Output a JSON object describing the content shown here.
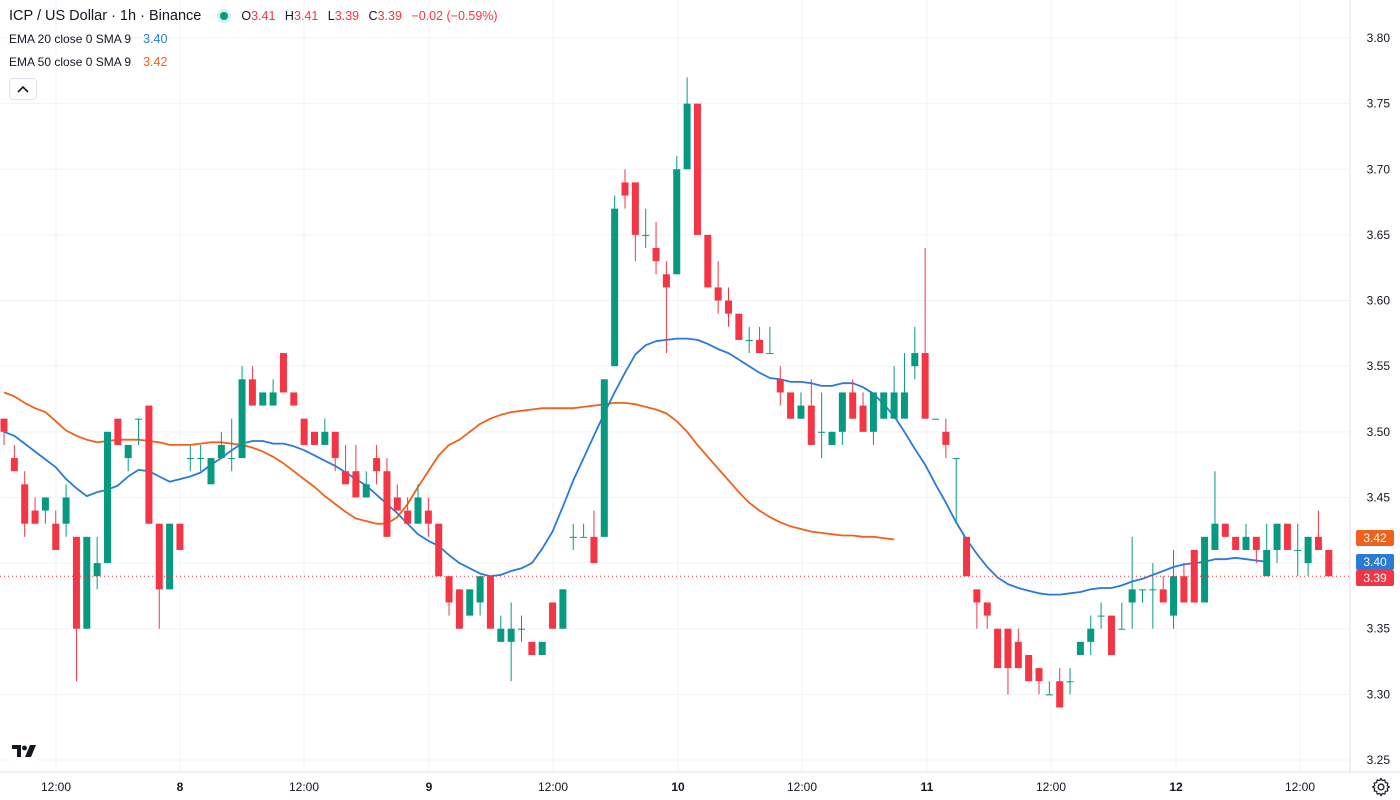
{
  "header": {
    "title": "ICP / US Dollar · 1h · Binance",
    "ohlc": {
      "o_label": "O",
      "o": "3.41",
      "h_label": "H",
      "h": "3.41",
      "l_label": "L",
      "l": "3.39",
      "c_label": "C",
      "c": "3.39",
      "change": "−0.02 (−0.59%)"
    }
  },
  "indicators": [
    {
      "label": "EMA 20 close 0 SMA 9",
      "value": "3.40",
      "color": "#2a7ad8"
    },
    {
      "label": "EMA 50 close 0 SMA 9",
      "value": "3.42",
      "color": "#f0621c"
    }
  ],
  "colors": {
    "up": "#089981",
    "down": "#f23645",
    "ema20": "#2a7ad8",
    "ema50": "#f0621c",
    "grid": "#f0f3fa",
    "axis_text": "#131722"
  },
  "icons": {
    "collapse": "chevron-up-icon",
    "logo": "tradingview-logo-icon",
    "settings": "gear-icon"
  },
  "chart_data": {
    "type": "candlestick",
    "symbol": "ICP / US Dollar",
    "interval": "1h",
    "exchange": "Binance",
    "ylim": [
      3.25,
      3.8
    ],
    "y_ticks": [
      "3.80",
      "3.75",
      "3.70",
      "3.65",
      "3.60",
      "3.55",
      "3.50",
      "3.45",
      "3.40",
      "3.35",
      "3.30",
      "3.25"
    ],
    "x_ticks": [
      "12:00",
      "8",
      "12:00",
      "9",
      "12:00",
      "10",
      "12:00",
      "11",
      "12:00",
      "12",
      "12:00"
    ],
    "price_labels": [
      {
        "value": "3.42",
        "color": "#f0621c"
      },
      {
        "value": "3.40",
        "color": "#2a7ad8"
      },
      {
        "value": "3.39",
        "color": "#f23645"
      }
    ],
    "current_price": 3.39,
    "candles": [
      [
        3.51,
        3.51,
        3.49,
        3.5
      ],
      [
        3.48,
        3.49,
        3.47,
        3.47
      ],
      [
        3.46,
        3.47,
        3.42,
        3.43
      ],
      [
        3.44,
        3.45,
        3.43,
        3.43
      ],
      [
        3.44,
        3.45,
        3.43,
        3.45
      ],
      [
        3.43,
        3.44,
        3.41,
        3.41
      ],
      [
        3.43,
        3.46,
        3.42,
        3.45
      ],
      [
        3.42,
        3.42,
        3.31,
        3.35
      ],
      [
        3.35,
        3.42,
        3.35,
        3.42
      ],
      [
        3.39,
        3.42,
        3.38,
        3.4
      ],
      [
        3.4,
        3.5,
        3.4,
        3.5
      ],
      [
        3.51,
        3.51,
        3.49,
        3.49
      ],
      [
        3.48,
        3.49,
        3.47,
        3.49
      ],
      [
        3.51,
        3.51,
        3.49,
        3.51
      ],
      [
        3.52,
        3.52,
        3.43,
        3.43
      ],
      [
        3.43,
        3.43,
        3.35,
        3.38
      ],
      [
        3.38,
        3.43,
        3.38,
        3.43
      ],
      [
        3.43,
        3.43,
        3.41,
        3.41
      ],
      [
        3.48,
        3.49,
        3.47,
        3.48
      ],
      [
        3.48,
        3.49,
        3.47,
        3.48
      ],
      [
        3.46,
        3.48,
        3.46,
        3.48
      ],
      [
        3.48,
        3.5,
        3.48,
        3.49
      ],
      [
        3.48,
        3.51,
        3.47,
        3.48
      ],
      [
        3.48,
        3.55,
        3.48,
        3.54
      ],
      [
        3.54,
        3.55,
        3.52,
        3.52
      ],
      [
        3.52,
        3.53,
        3.52,
        3.53
      ],
      [
        3.52,
        3.54,
        3.52,
        3.53
      ],
      [
        3.56,
        3.56,
        3.53,
        3.53
      ],
      [
        3.53,
        3.53,
        3.52,
        3.52
      ],
      [
        3.51,
        3.51,
        3.49,
        3.49
      ],
      [
        3.5,
        3.5,
        3.49,
        3.49
      ],
      [
        3.49,
        3.51,
        3.49,
        3.5
      ],
      [
        3.5,
        3.5,
        3.47,
        3.48
      ],
      [
        3.47,
        3.49,
        3.46,
        3.46
      ],
      [
        3.47,
        3.49,
        3.45,
        3.45
      ],
      [
        3.45,
        3.47,
        3.45,
        3.46
      ],
      [
        3.48,
        3.49,
        3.46,
        3.47
      ],
      [
        3.47,
        3.48,
        3.42,
        3.42
      ],
      [
        3.45,
        3.46,
        3.44,
        3.44
      ],
      [
        3.44,
        3.45,
        3.43,
        3.43
      ],
      [
        3.43,
        3.46,
        3.43,
        3.45
      ],
      [
        3.44,
        3.45,
        3.42,
        3.43
      ],
      [
        3.43,
        3.43,
        3.39,
        3.39
      ],
      [
        3.39,
        3.39,
        3.36,
        3.37
      ],
      [
        3.38,
        3.38,
        3.35,
        3.35
      ],
      [
        3.36,
        3.38,
        3.36,
        3.38
      ],
      [
        3.37,
        3.39,
        3.36,
        3.39
      ],
      [
        3.39,
        3.39,
        3.35,
        3.35
      ],
      [
        3.34,
        3.36,
        3.34,
        3.35
      ],
      [
        3.34,
        3.37,
        3.31,
        3.35
      ],
      [
        3.35,
        3.36,
        3.34,
        3.35
      ],
      [
        3.34,
        3.34,
        3.33,
        3.33
      ],
      [
        3.33,
        3.34,
        3.33,
        3.34
      ],
      [
        3.37,
        3.37,
        3.35,
        3.35
      ],
      [
        3.35,
        3.38,
        3.35,
        3.38
      ],
      [
        3.42,
        3.43,
        3.41,
        3.42
      ],
      [
        3.42,
        3.43,
        3.42,
        3.42
      ],
      [
        3.42,
        3.44,
        3.4,
        3.4
      ],
      [
        3.42,
        3.54,
        3.42,
        3.54
      ],
      [
        3.55,
        3.68,
        3.55,
        3.67
      ],
      [
        3.69,
        3.7,
        3.67,
        3.68
      ],
      [
        3.69,
        3.69,
        3.63,
        3.65
      ],
      [
        3.65,
        3.67,
        3.64,
        3.65
      ],
      [
        3.64,
        3.66,
        3.62,
        3.63
      ],
      [
        3.62,
        3.63,
        3.56,
        3.61
      ],
      [
        3.62,
        3.71,
        3.62,
        3.7
      ],
      [
        3.7,
        3.77,
        3.7,
        3.75
      ],
      [
        3.75,
        3.75,
        3.65,
        3.65
      ],
      [
        3.65,
        3.65,
        3.61,
        3.61
      ],
      [
        3.61,
        3.63,
        3.59,
        3.6
      ],
      [
        3.6,
        3.61,
        3.58,
        3.59
      ],
      [
        3.59,
        3.59,
        3.57,
        3.57
      ],
      [
        3.57,
        3.58,
        3.56,
        3.57
      ],
      [
        3.57,
        3.58,
        3.56,
        3.56
      ],
      [
        3.56,
        3.58,
        3.56,
        3.56
      ],
      [
        3.54,
        3.55,
        3.52,
        3.53
      ],
      [
        3.53,
        3.53,
        3.51,
        3.51
      ],
      [
        3.51,
        3.53,
        3.51,
        3.52
      ],
      [
        3.52,
        3.54,
        3.49,
        3.49
      ],
      [
        3.5,
        3.53,
        3.48,
        3.5
      ],
      [
        3.49,
        3.5,
        3.49,
        3.5
      ],
      [
        3.5,
        3.53,
        3.49,
        3.53
      ],
      [
        3.53,
        3.54,
        3.51,
        3.51
      ],
      [
        3.52,
        3.53,
        3.5,
        3.5
      ],
      [
        3.5,
        3.53,
        3.49,
        3.53
      ],
      [
        3.51,
        3.53,
        3.51,
        3.53
      ],
      [
        3.51,
        3.55,
        3.51,
        3.53
      ],
      [
        3.51,
        3.56,
        3.51,
        3.53
      ],
      [
        3.55,
        3.58,
        3.54,
        3.56
      ],
      [
        3.56,
        3.64,
        3.51,
        3.51
      ],
      [
        3.51,
        3.51,
        3.51,
        3.51
      ],
      [
        3.5,
        3.51,
        3.48,
        3.49
      ],
      [
        3.48,
        3.48,
        3.43,
        3.48
      ],
      [
        3.42,
        3.42,
        3.39,
        3.39
      ],
      [
        3.38,
        3.38,
        3.35,
        3.37
      ],
      [
        3.37,
        3.37,
        3.35,
        3.36
      ],
      [
        3.35,
        3.35,
        3.32,
        3.32
      ],
      [
        3.35,
        3.35,
        3.3,
        3.32
      ],
      [
        3.34,
        3.35,
        3.32,
        3.32
      ],
      [
        3.33,
        3.33,
        3.31,
        3.31
      ],
      [
        3.32,
        3.32,
        3.3,
        3.31
      ],
      [
        3.3,
        3.31,
        3.3,
        3.3
      ],
      [
        3.31,
        3.32,
        3.29,
        3.29
      ],
      [
        3.31,
        3.32,
        3.3,
        3.31
      ],
      [
        3.33,
        3.34,
        3.33,
        3.34
      ],
      [
        3.34,
        3.36,
        3.33,
        3.35
      ],
      [
        3.36,
        3.37,
        3.35,
        3.36
      ],
      [
        3.36,
        3.36,
        3.33,
        3.33
      ],
      [
        3.35,
        3.37,
        3.35,
        3.35
      ],
      [
        3.37,
        3.42,
        3.35,
        3.38
      ],
      [
        3.38,
        3.38,
        3.37,
        3.38
      ],
      [
        3.38,
        3.4,
        3.35,
        3.38
      ],
      [
        3.38,
        3.39,
        3.37,
        3.37
      ],
      [
        3.36,
        3.41,
        3.35,
        3.39
      ],
      [
        3.39,
        3.4,
        3.37,
        3.37
      ],
      [
        3.41,
        3.41,
        3.37,
        3.37
      ],
      [
        3.37,
        3.42,
        3.37,
        3.42
      ],
      [
        3.41,
        3.47,
        3.41,
        3.43
      ],
      [
        3.43,
        3.43,
        3.42,
        3.42
      ],
      [
        3.42,
        3.42,
        3.41,
        3.41
      ],
      [
        3.41,
        3.43,
        3.41,
        3.42
      ],
      [
        3.42,
        3.42,
        3.4,
        3.41
      ],
      [
        3.39,
        3.43,
        3.39,
        3.41
      ],
      [
        3.41,
        3.43,
        3.4,
        3.43
      ],
      [
        3.43,
        3.43,
        3.41,
        3.41
      ],
      [
        3.41,
        3.43,
        3.39,
        3.41
      ],
      [
        3.4,
        3.42,
        3.39,
        3.42
      ],
      [
        3.42,
        3.44,
        3.41,
        3.41
      ],
      [
        3.41,
        3.41,
        3.39,
        3.39
      ]
    ],
    "ema20": [
      3.5,
      3.497,
      3.491,
      3.485,
      3.479,
      3.473,
      3.464,
      3.457,
      3.451,
      3.454,
      3.456,
      3.459,
      3.466,
      3.471,
      3.47,
      3.466,
      3.462,
      3.464,
      3.466,
      3.469,
      3.475,
      3.48,
      3.486,
      3.491,
      3.493,
      3.493,
      3.491,
      3.491,
      3.489,
      3.486,
      3.482,
      3.478,
      3.474,
      3.469,
      3.464,
      3.459,
      3.452,
      3.445,
      3.438,
      3.43,
      3.422,
      3.417,
      3.413,
      3.406,
      3.4,
      3.396,
      3.392,
      3.39,
      3.391,
      3.394,
      3.396,
      3.4,
      3.411,
      3.424,
      3.443,
      3.463,
      3.48,
      3.497,
      3.514,
      3.53,
      3.545,
      3.559,
      3.566,
      3.569,
      3.57,
      3.571,
      3.571,
      3.57,
      3.567,
      3.563,
      3.56,
      3.555,
      3.55,
      3.545,
      3.541,
      3.54,
      3.538,
      3.538,
      3.537,
      3.535,
      3.535,
      3.537,
      3.537,
      3.534,
      3.529,
      3.521,
      3.512,
      3.5,
      3.487,
      3.475,
      3.46,
      3.446,
      3.431,
      3.418,
      3.407,
      3.397,
      3.389,
      3.384,
      3.381,
      3.379,
      3.377,
      3.376,
      3.376,
      3.377,
      3.378,
      3.38,
      3.381,
      3.381,
      3.383,
      3.386,
      3.388,
      3.391,
      3.394,
      3.397,
      3.399,
      3.4,
      3.401,
      3.403,
      3.403,
      3.404,
      3.403,
      3.402,
      3.401
    ],
    "ema50": [
      3.53,
      3.527,
      3.522,
      3.518,
      3.515,
      3.508,
      3.501,
      3.497,
      3.494,
      3.492,
      3.493,
      3.494,
      3.494,
      3.494,
      3.493,
      3.492,
      3.49,
      3.49,
      3.49,
      3.491,
      3.492,
      3.492,
      3.491,
      3.49,
      3.488,
      3.485,
      3.481,
      3.476,
      3.47,
      3.464,
      3.458,
      3.451,
      3.445,
      3.439,
      3.434,
      3.432,
      3.43,
      3.43,
      3.435,
      3.445,
      3.458,
      3.47,
      3.482,
      3.49,
      3.494,
      3.5,
      3.506,
      3.51,
      3.513,
      3.515,
      3.516,
      3.517,
      3.518,
      3.518,
      3.518,
      3.518,
      3.519,
      3.52,
      3.521,
      3.522,
      3.522,
      3.521,
      3.519,
      3.517,
      3.514,
      3.508,
      3.5,
      3.49,
      3.481,
      3.472,
      3.463,
      3.454,
      3.446,
      3.44,
      3.435,
      3.431,
      3.428,
      3.426,
      3.424,
      3.423,
      3.422,
      3.421,
      3.421,
      3.42,
      3.42,
      3.419,
      3.418
    ],
    "ema20_start_index": 0,
    "ema50_start_index": 0
  }
}
